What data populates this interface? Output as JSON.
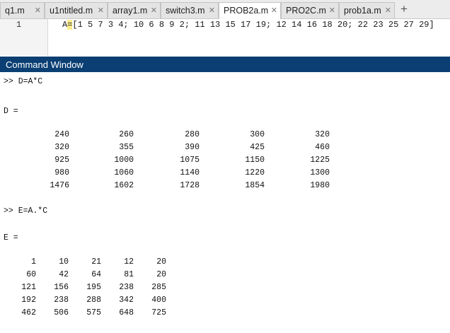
{
  "tabs": [
    {
      "label": "q1.m"
    },
    {
      "label": "u1ntitled.m"
    },
    {
      "label": "array1.m"
    },
    {
      "label": "switch3.m"
    },
    {
      "label": "PROB2a.m"
    },
    {
      "label": "PRO2C.m"
    },
    {
      "label": "prob1a.m"
    }
  ],
  "active_tab": "PROB2a.m",
  "editor": {
    "line_number": "1",
    "code_prefix": "A",
    "code_highlight": "=",
    "code_rest": "[1 5 7 3 4; 10 6 8 9 2; 11 13 15 17 19; 12 14 16 18 20; 22 23 25 27 29]"
  },
  "command_window": {
    "title": "Command Window",
    "cmd1": ">> D=A*C",
    "out1_label": "D =",
    "matrix_D": [
      [
        "240",
        "260",
        "280",
        "300",
        "320"
      ],
      [
        "320",
        "355",
        "390",
        "425",
        "460"
      ],
      [
        "925",
        "1000",
        "1075",
        "1150",
        "1225"
      ],
      [
        "980",
        "1060",
        "1140",
        "1220",
        "1300"
      ],
      [
        "1476",
        "1602",
        "1728",
        "1854",
        "1980"
      ]
    ],
    "cmd2": ">> E=A.*C",
    "out2_label": "E =",
    "matrix_E": [
      [
        "1",
        "10",
        "21",
        "12",
        "20"
      ],
      [
        "60",
        "42",
        "64",
        "81",
        "20"
      ],
      [
        "121",
        "156",
        "195",
        "238",
        "285"
      ],
      [
        "192",
        "238",
        "288",
        "342",
        "400"
      ],
      [
        "462",
        "506",
        "575",
        "648",
        "725"
      ]
    ]
  }
}
